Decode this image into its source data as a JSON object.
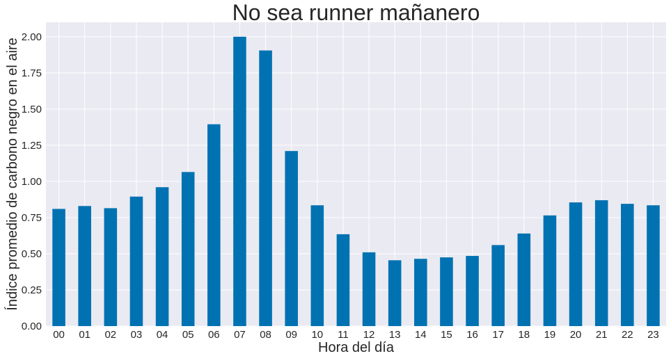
{
  "chart_data": {
    "type": "bar",
    "title": "No sea runner mañanero",
    "xlabel": "Hora del día",
    "ylabel": "Índice promedio de carbono negro en el aire",
    "categories": [
      "00",
      "01",
      "02",
      "03",
      "04",
      "05",
      "06",
      "07",
      "08",
      "09",
      "10",
      "11",
      "12",
      "13",
      "14",
      "15",
      "16",
      "17",
      "18",
      "19",
      "20",
      "21",
      "22",
      "23"
    ],
    "values": [
      0.81,
      0.83,
      0.815,
      0.895,
      0.96,
      1.065,
      1.395,
      2.0,
      1.905,
      1.21,
      0.835,
      0.635,
      0.51,
      0.455,
      0.465,
      0.475,
      0.485,
      0.56,
      0.64,
      0.765,
      0.855,
      0.87,
      0.845,
      0.835
    ],
    "ylim": [
      0,
      2.1
    ],
    "yticks": [
      "0.00",
      "0.25",
      "0.50",
      "0.75",
      "1.00",
      "1.25",
      "1.50",
      "1.75",
      "2.00"
    ],
    "grid": true,
    "colors": {
      "bar": "#0072b2",
      "plot_background": "#eaeaf2",
      "grid": "#ffffff",
      "text": "#262626"
    }
  }
}
